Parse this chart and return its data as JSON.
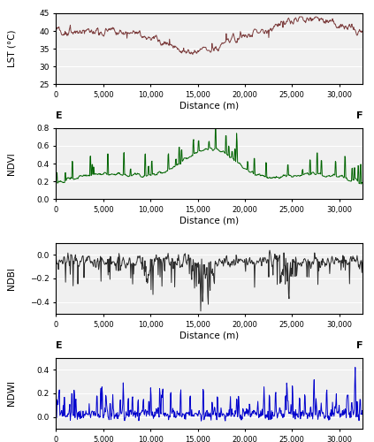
{
  "x_max": 32500,
  "x_ticks": [
    0,
    5000,
    10000,
    15000,
    20000,
    25000,
    30000
  ],
  "x_tick_labels": [
    "0",
    "5,000",
    "10,000",
    "15,000",
    "20,000",
    "25,000",
    "30,000"
  ],
  "xlabel": "Distance (m)",
  "lst_ylim": [
    25,
    45
  ],
  "lst_yticks": [
    25,
    30,
    35,
    40,
    45
  ],
  "lst_ylabel": "LST (°C)",
  "lst_color": "#7b3b3b",
  "ndvi_ylim": [
    0.0,
    0.8
  ],
  "ndvi_yticks": [
    0.0,
    0.2,
    0.4,
    0.6,
    0.8
  ],
  "ndvi_ylabel": "NDVI",
  "ndvi_color": "#006400",
  "ndbi_ylim": [
    -0.5,
    0.1
  ],
  "ndbi_yticks": [
    -0.4,
    -0.2,
    0.0
  ],
  "ndbi_ylabel": "NDBI",
  "ndbi_color": "#2b2b2b",
  "ndwi_ylim": [
    -0.1,
    0.5
  ],
  "ndwi_yticks": [
    0.0,
    0.2,
    0.4
  ],
  "ndwi_ylabel": "NDWI",
  "ndwi_color": "#0000cd",
  "e_label": "E",
  "f_label": "F",
  "bg_color": "#f0f0f0",
  "fig_bg": "#ffffff",
  "linewidth": 0.7,
  "seed": 42
}
